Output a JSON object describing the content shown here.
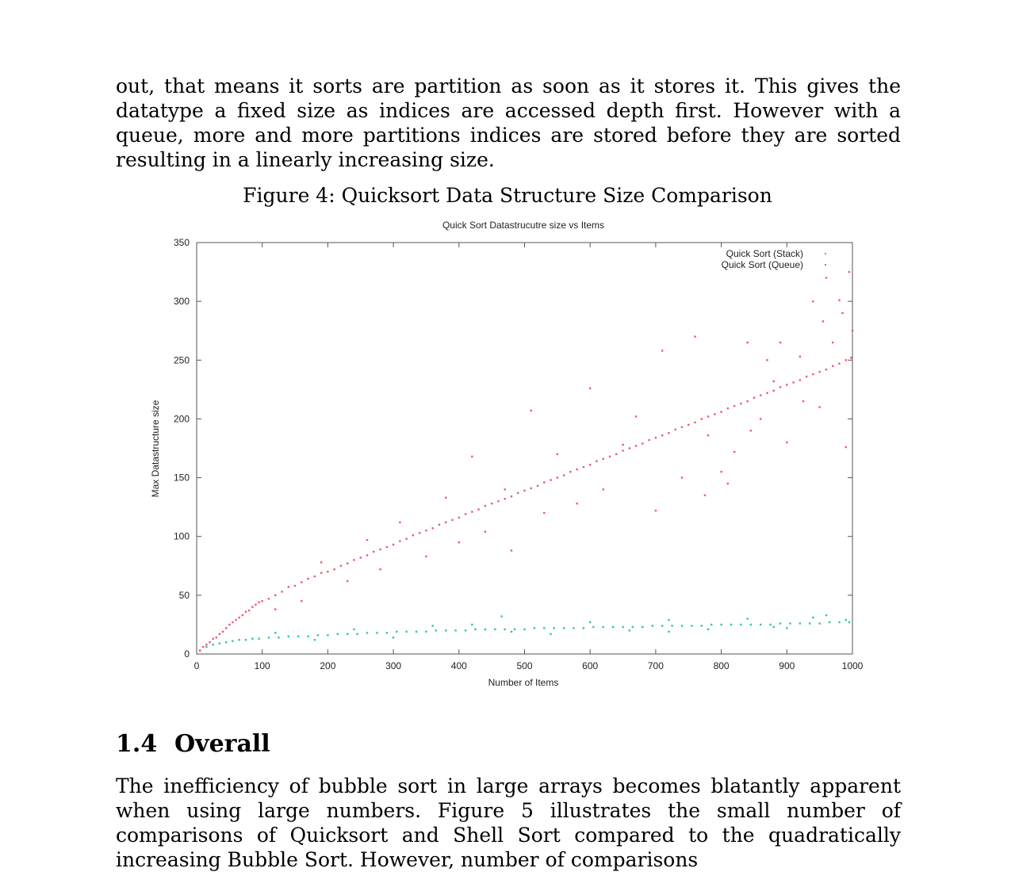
{
  "intro_text": "out, that means it sorts are partition as soon as it stores it. This gives the datatype a fixed size as indices are accessed depth first. However with a queue, more and more partitions indices are stored before they are sorted resulting in a linearly increasing size.",
  "figure_caption": "Figure 4: Quicksort Data Structure Size Comparison",
  "section": {
    "number": "1.4",
    "title": "Overall"
  },
  "outro_text": "The inefficiency of bubble sort in large arrays becomes blatantly apparent when using large numbers. Figure 5 illustrates the small number of comparisons of Quicksort and Shell Sort compared to the quadratically increasing Bubble Sort. However, number of comparisons",
  "chart_data": {
    "type": "scatter",
    "title": "Quick Sort Datastrucutre size vs Items",
    "xlabel": "Number of Items",
    "ylabel": "Max Datastructure size",
    "xlim": [
      0,
      1000
    ],
    "ylim": [
      0,
      350
    ],
    "xticks": [
      "0",
      "100",
      "200",
      "300",
      "400",
      "500",
      "600",
      "700",
      "800",
      "900",
      "1000"
    ],
    "yticks": [
      "0",
      "50",
      "100",
      "150",
      "200",
      "250",
      "300",
      "350"
    ],
    "legend_position": "top-right",
    "grid": false,
    "series": [
      {
        "name": "Quick Sort (Stack)",
        "color": "#2ecc8b",
        "points": [
          [
            5,
            3
          ],
          [
            15,
            6
          ],
          [
            25,
            8
          ],
          [
            35,
            9
          ],
          [
            45,
            10
          ],
          [
            55,
            11
          ],
          [
            65,
            12
          ],
          [
            75,
            12
          ],
          [
            85,
            13
          ],
          [
            95,
            13
          ],
          [
            110,
            14
          ],
          [
            125,
            14
          ],
          [
            140,
            15
          ],
          [
            155,
            15
          ],
          [
            170,
            15
          ],
          [
            185,
            16
          ],
          [
            200,
            16
          ],
          [
            215,
            17
          ],
          [
            230,
            17
          ],
          [
            245,
            17
          ],
          [
            260,
            18
          ],
          [
            275,
            18
          ],
          [
            290,
            18
          ],
          [
            305,
            19
          ],
          [
            320,
            19
          ],
          [
            335,
            19
          ],
          [
            350,
            19
          ],
          [
            365,
            20
          ],
          [
            380,
            20
          ],
          [
            395,
            20
          ],
          [
            410,
            20
          ],
          [
            425,
            21
          ],
          [
            440,
            21
          ],
          [
            455,
            21
          ],
          [
            465,
            32
          ],
          [
            470,
            21
          ],
          [
            485,
            21
          ],
          [
            500,
            21
          ],
          [
            515,
            22
          ],
          [
            530,
            22
          ],
          [
            545,
            22
          ],
          [
            560,
            22
          ],
          [
            575,
            22
          ],
          [
            590,
            22
          ],
          [
            605,
            23
          ],
          [
            620,
            23
          ],
          [
            635,
            23
          ],
          [
            650,
            23
          ],
          [
            665,
            23
          ],
          [
            680,
            23
          ],
          [
            695,
            24
          ],
          [
            710,
            24
          ],
          [
            725,
            24
          ],
          [
            740,
            24
          ],
          [
            755,
            24
          ],
          [
            770,
            24
          ],
          [
            785,
            25
          ],
          [
            800,
            25
          ],
          [
            815,
            25
          ],
          [
            830,
            25
          ],
          [
            845,
            25
          ],
          [
            860,
            25
          ],
          [
            875,
            25
          ],
          [
            890,
            26
          ],
          [
            905,
            26
          ],
          [
            920,
            26
          ],
          [
            935,
            26
          ],
          [
            950,
            26
          ],
          [
            965,
            27
          ],
          [
            980,
            27
          ],
          [
            995,
            27
          ],
          [
            120,
            18
          ],
          [
            240,
            21
          ],
          [
            360,
            24
          ],
          [
            480,
            19
          ],
          [
            600,
            27
          ],
          [
            720,
            29
          ],
          [
            840,
            30
          ],
          [
            960,
            33
          ],
          [
            300,
            14
          ],
          [
            540,
            17
          ],
          [
            660,
            20
          ],
          [
            780,
            21
          ],
          [
            900,
            22
          ],
          [
            420,
            25
          ],
          [
            180,
            12
          ],
          [
            720,
            19
          ],
          [
            880,
            23
          ],
          [
            940,
            31
          ],
          [
            990,
            29
          ]
        ]
      },
      {
        "name": "Quick Sort (Queue)",
        "color": "#ee5a6f",
        "points": [
          [
            5,
            3
          ],
          [
            10,
            6
          ],
          [
            15,
            8
          ],
          [
            20,
            10
          ],
          [
            25,
            13
          ],
          [
            30,
            14
          ],
          [
            35,
            17
          ],
          [
            40,
            19
          ],
          [
            45,
            22
          ],
          [
            50,
            25
          ],
          [
            55,
            27
          ],
          [
            60,
            29
          ],
          [
            65,
            31
          ],
          [
            70,
            33
          ],
          [
            75,
            36
          ],
          [
            80,
            37
          ],
          [
            85,
            40
          ],
          [
            90,
            42
          ],
          [
            95,
            44
          ],
          [
            100,
            45
          ],
          [
            110,
            47
          ],
          [
            120,
            50
          ],
          [
            130,
            53
          ],
          [
            140,
            57
          ],
          [
            150,
            58
          ],
          [
            160,
            61
          ],
          [
            170,
            64
          ],
          [
            180,
            66
          ],
          [
            190,
            69
          ],
          [
            200,
            70
          ],
          [
            210,
            72
          ],
          [
            220,
            75
          ],
          [
            230,
            77
          ],
          [
            240,
            80
          ],
          [
            250,
            82
          ],
          [
            260,
            84
          ],
          [
            270,
            87
          ],
          [
            280,
            89
          ],
          [
            290,
            91
          ],
          [
            300,
            93
          ],
          [
            310,
            96
          ],
          [
            320,
            98
          ],
          [
            330,
            101
          ],
          [
            340,
            103
          ],
          [
            350,
            105
          ],
          [
            360,
            107
          ],
          [
            370,
            110
          ],
          [
            380,
            112
          ],
          [
            390,
            114
          ],
          [
            400,
            116
          ],
          [
            410,
            119
          ],
          [
            420,
            121
          ],
          [
            430,
            123
          ],
          [
            440,
            126
          ],
          [
            450,
            128
          ],
          [
            460,
            130
          ],
          [
            470,
            132
          ],
          [
            480,
            134
          ],
          [
            490,
            137
          ],
          [
            500,
            139
          ],
          [
            510,
            141
          ],
          [
            520,
            143
          ],
          [
            530,
            146
          ],
          [
            540,
            148
          ],
          [
            550,
            150
          ],
          [
            560,
            152
          ],
          [
            570,
            155
          ],
          [
            580,
            157
          ],
          [
            590,
            159
          ],
          [
            600,
            161
          ],
          [
            610,
            164
          ],
          [
            620,
            166
          ],
          [
            630,
            168
          ],
          [
            640,
            170
          ],
          [
            650,
            173
          ],
          [
            660,
            175
          ],
          [
            670,
            177
          ],
          [
            680,
            179
          ],
          [
            690,
            182
          ],
          [
            700,
            184
          ],
          [
            710,
            186
          ],
          [
            720,
            188
          ],
          [
            730,
            191
          ],
          [
            740,
            193
          ],
          [
            750,
            195
          ],
          [
            760,
            197
          ],
          [
            770,
            200
          ],
          [
            780,
            202
          ],
          [
            790,
            204
          ],
          [
            800,
            206
          ],
          [
            810,
            209
          ],
          [
            820,
            211
          ],
          [
            830,
            213
          ],
          [
            840,
            215
          ],
          [
            850,
            218
          ],
          [
            860,
            220
          ],
          [
            870,
            222
          ],
          [
            880,
            224
          ],
          [
            890,
            227
          ],
          [
            900,
            229
          ],
          [
            910,
            231
          ],
          [
            920,
            233
          ],
          [
            930,
            236
          ],
          [
            940,
            238
          ],
          [
            950,
            240
          ],
          [
            960,
            242
          ],
          [
            970,
            245
          ],
          [
            980,
            247
          ],
          [
            990,
            250
          ],
          [
            998,
            252
          ],
          [
            120,
            38
          ],
          [
            160,
            45
          ],
          [
            190,
            78
          ],
          [
            230,
            62
          ],
          [
            260,
            97
          ],
          [
            280,
            72
          ],
          [
            310,
            112
          ],
          [
            350,
            83
          ],
          [
            380,
            133
          ],
          [
            400,
            95
          ],
          [
            420,
            168
          ],
          [
            440,
            104
          ],
          [
            470,
            140
          ],
          [
            480,
            88
          ],
          [
            510,
            207
          ],
          [
            530,
            120
          ],
          [
            550,
            170
          ],
          [
            580,
            128
          ],
          [
            600,
            226
          ],
          [
            620,
            140
          ],
          [
            650,
            178
          ],
          [
            670,
            202
          ],
          [
            700,
            122
          ],
          [
            710,
            258
          ],
          [
            740,
            150
          ],
          [
            760,
            270
          ],
          [
            780,
            186
          ],
          [
            800,
            155
          ],
          [
            820,
            172
          ],
          [
            840,
            265
          ],
          [
            860,
            200
          ],
          [
            880,
            232
          ],
          [
            900,
            180
          ],
          [
            920,
            253
          ],
          [
            940,
            300
          ],
          [
            950,
            210
          ],
          [
            960,
            320
          ],
          [
            970,
            265
          ],
          [
            980,
            301
          ],
          [
            990,
            176
          ],
          [
            995,
            325
          ],
          [
            1000,
            275
          ],
          [
            985,
            290
          ],
          [
            955,
            283
          ],
          [
            925,
            215
          ],
          [
            890,
            265
          ],
          [
            870,
            250
          ],
          [
            845,
            190
          ],
          [
            810,
            145
          ],
          [
            775,
            135
          ]
        ]
      }
    ]
  }
}
